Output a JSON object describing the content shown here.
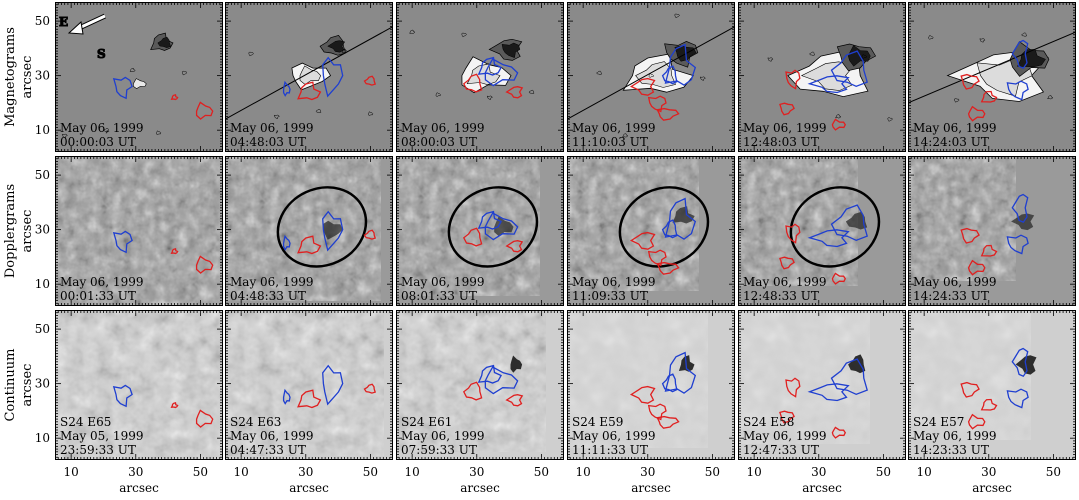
{
  "figure": {
    "compass": {
      "east": "E",
      "south": "S"
    },
    "rows": [
      {
        "label": "Magnetograms",
        "unit": "arcsec",
        "panels": [
          {
            "date": "May 06, 1999",
            "time": "00:00:03 UT"
          },
          {
            "date": "May 06, 1999",
            "time": "04:48:03 UT"
          },
          {
            "date": "May 06, 1999",
            "time": "08:00:03 UT"
          },
          {
            "date": "May 06, 1999",
            "time": "11:10:03 UT"
          },
          {
            "date": "May 06, 1999",
            "time": "12:48:03 UT"
          },
          {
            "date": "May 06, 1999",
            "time": "14:24:03 UT"
          }
        ]
      },
      {
        "label": "Dopplergrams",
        "unit": "arcsec",
        "panels": [
          {
            "date": "May 06, 1999",
            "time": "00:01:33 UT"
          },
          {
            "date": "May 06, 1999",
            "time": "04:48:33 UT"
          },
          {
            "date": "May 06, 1999",
            "time": "08:01:33 UT"
          },
          {
            "date": "May 06, 1999",
            "time": "11:09:33 UT"
          },
          {
            "date": "May 06, 1999",
            "time": "12:48:33 UT"
          },
          {
            "date": "May 06, 1999",
            "time": "14:24:33 UT"
          }
        ]
      },
      {
        "label": "Continuum",
        "unit": "arcsec",
        "panels": [
          {
            "position": "S24 E65",
            "date": "May 05, 1999",
            "time": "23:59:33 UT"
          },
          {
            "position": "S24 E63",
            "date": "May 06, 1999",
            "time": "04:47:33 UT"
          },
          {
            "position": "S24 E61",
            "date": "May 06, 1999",
            "time": "07:59:33 UT"
          },
          {
            "position": "S24 E59",
            "date": "May 06, 1999",
            "time": "11:11:33 UT"
          },
          {
            "position": "S24 E58",
            "date": "May 06, 1999",
            "time": "12:47:33 UT"
          },
          {
            "position": "S24 E57",
            "date": "May 06, 1999",
            "time": "14:23:33 UT"
          }
        ]
      }
    ],
    "axes": {
      "x_label": "arcsec",
      "y_label": "arcsec",
      "x_ticks": [
        10,
        30,
        50
      ],
      "y_ticks": [
        10,
        30,
        50
      ],
      "x_range": [
        5,
        57
      ],
      "y_range": [
        2,
        57
      ]
    },
    "colors": {
      "background_magnetogram": "#8a8a8a",
      "positive_contour": "#e02020",
      "negative_contour": "#1f3fd0",
      "ellipse": "#000000"
    }
  }
}
